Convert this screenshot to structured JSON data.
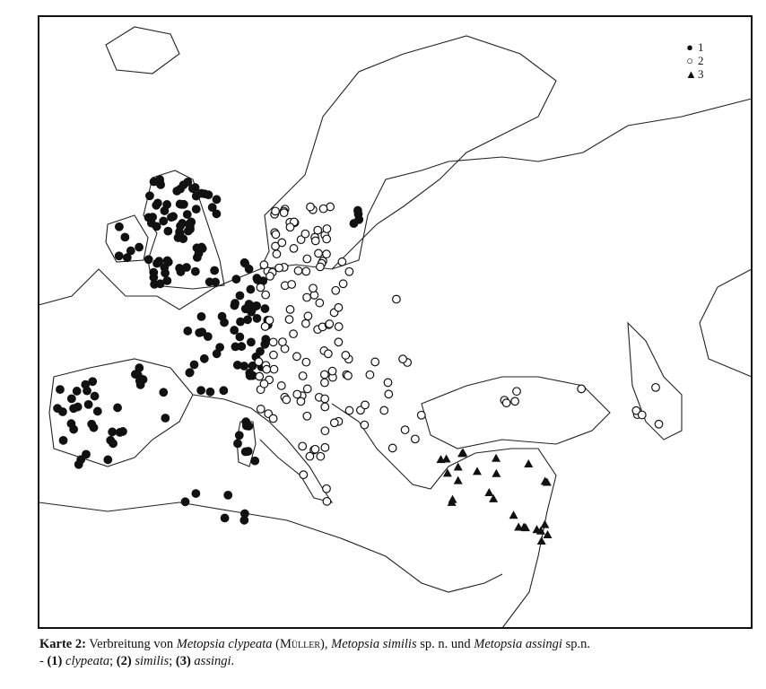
{
  "legend": [
    {
      "symbol": "filled-circle",
      "label": "1"
    },
    {
      "symbol": "open-circle",
      "label": "2"
    },
    {
      "symbol": "filled-triangle",
      "label": "3"
    }
  ],
  "caption": {
    "label": "Karte 2:",
    "t1": " Verbreitung von ",
    "species1": "Metopsia clypeata",
    "author": "(Müller)",
    "t2": ", ",
    "species2": "Metopsia similis",
    "t3": " sp. n. und ",
    "species3": "Metopsia assingi",
    "t4": " sp.n.",
    "line2_prefix": "- ",
    "n1": "(1)",
    "name1": "clypeata",
    "n2": "(2)",
    "name2": "similis",
    "n3": "(3)",
    "name3": "assingi",
    "sep": "; ",
    "end": "."
  },
  "colors": {
    "ink": "#111111",
    "paper": "#ffffff"
  }
}
